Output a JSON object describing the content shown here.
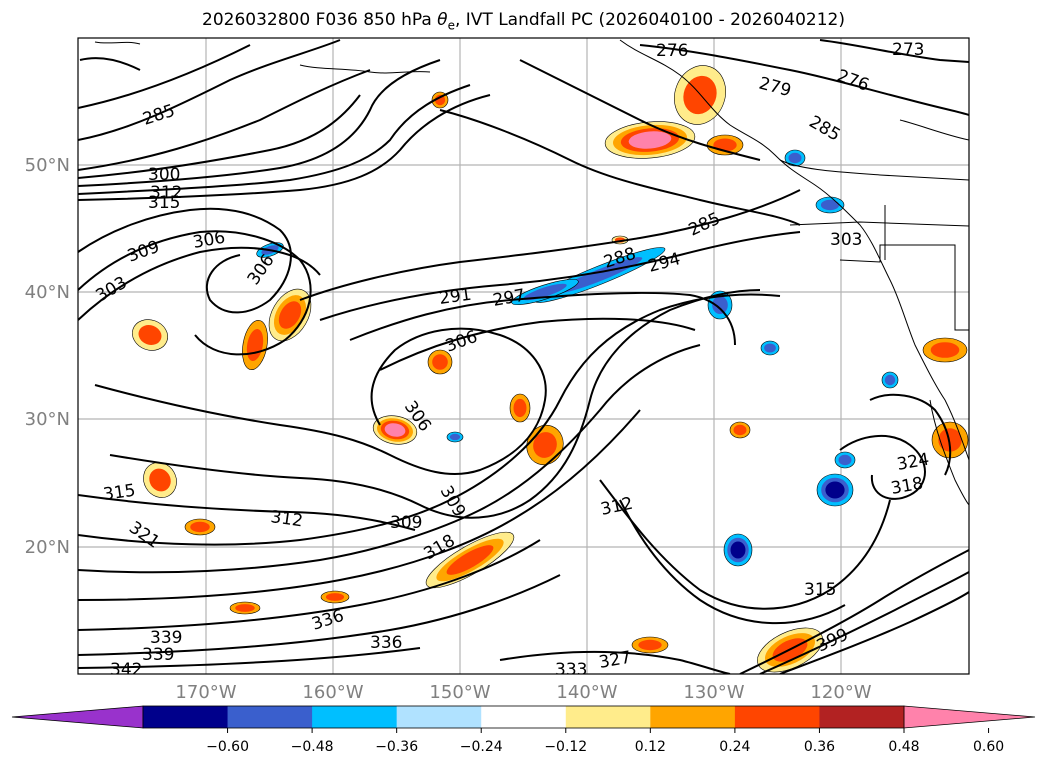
{
  "title": "2026032800 F036 850 hPa θe, IVT Landfall PC (2026040100 - 2026040212)",
  "title_plain": "2026032800 F036 850 hPa ",
  "title_theta": "θ",
  "title_sub": "e",
  "title_rest": ", IVT Landfall PC (2026040100 - 2026040212)",
  "lat_labels": [
    "50°N",
    "40°N",
    "30°N",
    "20°N"
  ],
  "lon_labels": [
    "170°W",
    "160°W",
    "150°W",
    "140°W",
    "130°W",
    "120°W"
  ],
  "contour_labels": [
    "276",
    "273",
    "276",
    "279",
    "285",
    "285",
    "300",
    "312",
    "315",
    "306",
    "309",
    "303",
    "306",
    "285",
    "288",
    "294",
    "291",
    "297",
    "303",
    "306",
    "306",
    "309",
    "309",
    "312",
    "312",
    "315",
    "321",
    "318",
    "336",
    "336",
    "339",
    "339",
    "342",
    "333",
    "327",
    "315",
    "399",
    "318",
    "324"
  ],
  "colorbar": {
    "colors": [
      "#9932CC",
      "#00008B",
      "#3A5FCD",
      "#00BFFF",
      "#B0E2FF",
      "#FFFFFF",
      "#FFEC8B",
      "#FFA500",
      "#FF4500",
      "#B22222",
      "#FF82AB"
    ],
    "tick_labels": [
      "−0.60",
      "−0.48",
      "−0.36",
      "−0.24",
      "−0.12",
      "0.12",
      "0.24",
      "0.36",
      "0.48",
      "0.60"
    ]
  },
  "field_colors": {
    "positive_light": "#FFEC8B",
    "positive_mid": "#FFA500",
    "positive_strong": "#FF4500",
    "positive_max": "#FF82AB",
    "negative_light": "#00BFFF",
    "negative_mid": "#3A5FCD",
    "negative_strong": "#00008B"
  }
}
